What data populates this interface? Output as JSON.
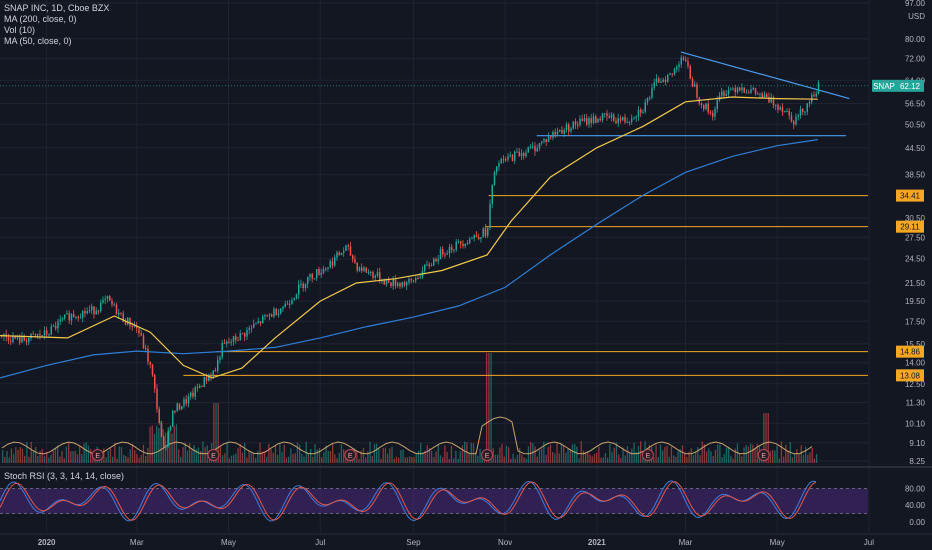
{
  "legend": {
    "title": "SNAP INC, 1D, Cboe BZX",
    "ma200": "MA (200, close, 0)",
    "vol": "Vol (10)",
    "ma50": "MA (50, close, 0)",
    "stoch": "Stoch RSI (3, 3, 14, 14, close)"
  },
  "colors": {
    "background": "#131722",
    "grid": "#1f2330",
    "up": "#26a69a",
    "down": "#ef5350",
    "ma50": "#f2c94c",
    "ma200": "#2f7fd8",
    "trendline": "#4a9cf0",
    "level": "#f5a623",
    "stoch_band": "#4b2a7b",
    "stoch_k": "#3b7ddd",
    "stoch_d": "#e2574c"
  },
  "price_axis": {
    "currency": "USD",
    "ticks": [
      "97.00",
      "80.00",
      "72.00",
      "64.00",
      "56.50",
      "50.50",
      "44.50",
      "38.50",
      "30.50",
      "27.50",
      "24.50",
      "21.50",
      "19.50",
      "17.50",
      "15.50",
      "14.00",
      "12.50",
      "11.30",
      "10.10",
      "9.10",
      "8.25"
    ]
  },
  "stoch_axis": {
    "ticks": [
      "80.00",
      "40.00",
      "0.00"
    ]
  },
  "time_axis": {
    "labels": [
      "2020",
      "Mar",
      "May",
      "Jul",
      "Sep",
      "Nov",
      "2021",
      "Mar",
      "May",
      "Jul"
    ]
  },
  "labels": {
    "symbol": "SNAP",
    "price": "62.12",
    "level_1": "34.41",
    "level_2": "29.11",
    "level_3": "14.86",
    "level_4": "13.08"
  },
  "earnings_marker": "E",
  "chart_data": {
    "type": "candlestick",
    "symbol": "SNAP",
    "timeframe": "1D",
    "exchange": "Cboe BZX",
    "last_price": 62.12,
    "x_range": [
      "2019-12",
      "2021-07"
    ],
    "price_range": [
      8.25,
      97.0
    ],
    "scale": "log",
    "horizontal_levels": [
      34.41,
      29.11,
      14.86,
      13.08
    ],
    "support_line": 47.5,
    "trendline": {
      "from": [
        "2021-02-26",
        74.5
      ],
      "to": [
        "2021-06-18",
        58.0
      ]
    },
    "close_path": [
      [
        "2019-12-01",
        16.2
      ],
      [
        "2019-12-15",
        15.8
      ],
      [
        "2020-01-01",
        16.4
      ],
      [
        "2020-01-15",
        18.0
      ],
      [
        "2020-02-01",
        18.6
      ],
      [
        "2020-02-10",
        19.6
      ],
      [
        "2020-02-20",
        17.8
      ],
      [
        "2020-03-01",
        16.8
      ],
      [
        "2020-03-10",
        13.5
      ],
      [
        "2020-03-18",
        8.6
      ],
      [
        "2020-03-25",
        10.8
      ],
      [
        "2020-04-05",
        11.6
      ],
      [
        "2020-04-15",
        12.8
      ],
      [
        "2020-04-22",
        13.5
      ],
      [
        "2020-04-26",
        15.2
      ],
      [
        "2020-05-10",
        16.3
      ],
      [
        "2020-05-25",
        17.8
      ],
      [
        "2020-06-08",
        19.2
      ],
      [
        "2020-06-22",
        22.0
      ],
      [
        "2020-07-05",
        23.5
      ],
      [
        "2020-07-18",
        26.0
      ],
      [
        "2020-07-25",
        23.5
      ],
      [
        "2020-08-05",
        22.5
      ],
      [
        "2020-08-15",
        21.5
      ],
      [
        "2020-08-30",
        21.5
      ],
      [
        "2020-09-10",
        23.5
      ],
      [
        "2020-09-20",
        25.5
      ],
      [
        "2020-10-05",
        27.0
      ],
      [
        "2020-10-20",
        28.5
      ],
      [
        "2020-10-22",
        34.4
      ],
      [
        "2020-10-26",
        40.5
      ],
      [
        "2020-11-05",
        42.5
      ],
      [
        "2020-11-20",
        44.5
      ],
      [
        "2020-12-05",
        48.5
      ],
      [
        "2020-12-20",
        51.0
      ],
      [
        "2021-01-05",
        52.5
      ],
      [
        "2021-01-20",
        51.5
      ],
      [
        "2021-02-01",
        55.5
      ],
      [
        "2021-02-10",
        64.0
      ],
      [
        "2021-02-20",
        66.0
      ],
      [
        "2021-02-26",
        73.5
      ],
      [
        "2021-03-05",
        63.5
      ],
      [
        "2021-03-10",
        57.5
      ],
      [
        "2021-03-18",
        53.0
      ],
      [
        "2021-03-25",
        60.0
      ],
      [
        "2021-04-05",
        62.0
      ],
      [
        "2021-04-15",
        60.0
      ],
      [
        "2021-04-25",
        57.5
      ],
      [
        "2021-05-05",
        55.0
      ],
      [
        "2021-05-12",
        51.5
      ],
      [
        "2021-05-20",
        56.0
      ],
      [
        "2021-05-26",
        60.5
      ],
      [
        "2021-05-28",
        62.12
      ]
    ],
    "ma50_path": [
      [
        "2019-12-01",
        16.2
      ],
      [
        "2020-01-15",
        16.0
      ],
      [
        "2020-02-15",
        18.0
      ],
      [
        "2020-03-10",
        16.5
      ],
      [
        "2020-04-01",
        13.8
      ],
      [
        "2020-04-20",
        12.9
      ],
      [
        "2020-05-10",
        13.6
      ],
      [
        "2020-06-01",
        16.0
      ],
      [
        "2020-07-01",
        19.5
      ],
      [
        "2020-07-25",
        21.5
      ],
      [
        "2020-08-20",
        22.0
      ],
      [
        "2020-09-20",
        23.0
      ],
      [
        "2020-10-20",
        25.0
      ],
      [
        "2020-11-05",
        30.0
      ],
      [
        "2020-12-01",
        38.0
      ],
      [
        "2021-01-01",
        44.5
      ],
      [
        "2021-02-01",
        50.0
      ],
      [
        "2021-03-01",
        57.0
      ],
      [
        "2021-04-01",
        58.5
      ],
      [
        "2021-05-01",
        58.0
      ],
      [
        "2021-05-28",
        57.8
      ]
    ],
    "ma200_path": [
      [
        "2019-12-01",
        12.9
      ],
      [
        "2020-01-01",
        13.8
      ],
      [
        "2020-02-01",
        14.6
      ],
      [
        "2020-03-01",
        14.9
      ],
      [
        "2020-04-01",
        14.7
      ],
      [
        "2020-05-01",
        14.9
      ],
      [
        "2020-06-01",
        15.2
      ],
      [
        "2020-07-01",
        16.0
      ],
      [
        "2020-08-01",
        17.0
      ],
      [
        "2020-09-01",
        17.9
      ],
      [
        "2020-10-01",
        19.0
      ],
      [
        "2020-11-01",
        21.0
      ],
      [
        "2020-12-01",
        25.0
      ],
      [
        "2021-01-01",
        29.5
      ],
      [
        "2021-02-01",
        34.5
      ],
      [
        "2021-03-01",
        39.0
      ],
      [
        "2021-04-01",
        42.5
      ],
      [
        "2021-05-01",
        45.0
      ],
      [
        "2021-05-28",
        46.5
      ]
    ],
    "earnings_dates": [
      "2020-02-04",
      "2020-04-21",
      "2020-07-21",
      "2020-10-20",
      "2021-02-04",
      "2021-04-22"
    ],
    "stoch_rsi": {
      "range": [
        0,
        100
      ],
      "upper": 80,
      "lower": 20
    }
  }
}
